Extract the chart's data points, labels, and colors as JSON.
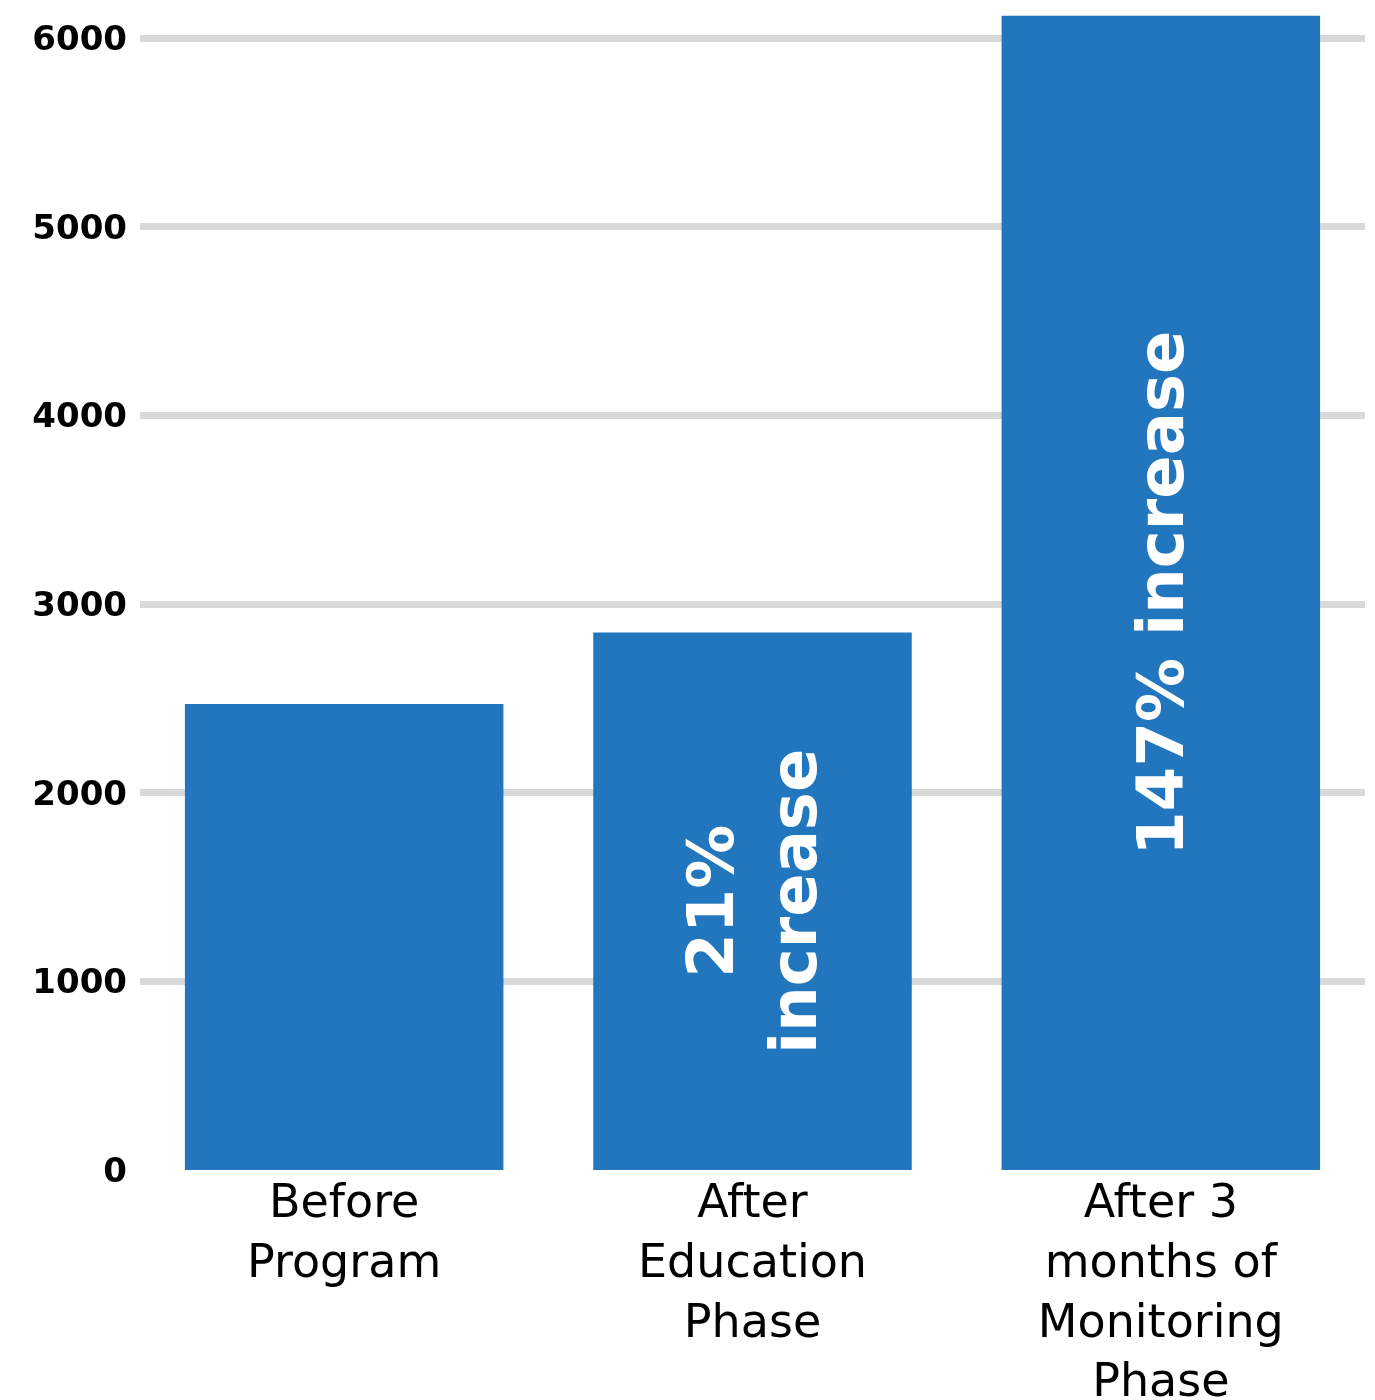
{
  "chart_data": {
    "type": "bar",
    "categories": [
      "Before Program",
      "After Education Phase",
      "After 3 months of Monitoring Phase"
    ],
    "values": [
      2470,
      2850,
      6120
    ],
    "color": "#2176bd",
    "ylim": [
      0,
      6150
    ],
    "yticks": [
      0,
      1000,
      2000,
      3000,
      4000,
      5000,
      6000
    ],
    "grid": "y",
    "annotations": [
      "21% increase",
      "147% increase"
    ]
  }
}
